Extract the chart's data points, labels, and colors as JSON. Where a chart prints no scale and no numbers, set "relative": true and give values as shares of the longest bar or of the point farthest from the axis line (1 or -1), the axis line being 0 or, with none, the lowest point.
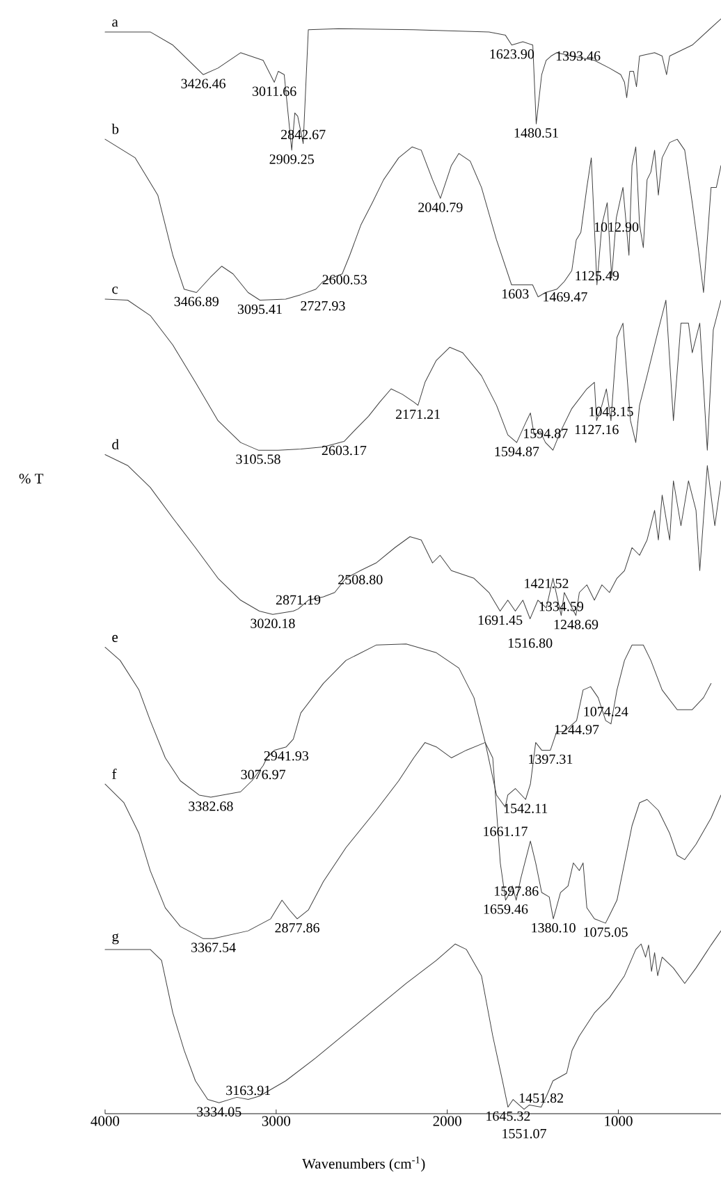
{
  "chart_data": {
    "type": "line",
    "relative": true,
    "xlabel": "Wavenumbers (cm$^{-1}$)",
    "ylabel": "% T",
    "xlim": [
      4000,
      400
    ],
    "xticks": [
      4000,
      3000,
      2000,
      1000
    ],
    "tick_labels": "x",
    "series": [
      {
        "name": "a",
        "color": "#404040",
        "x": [
          4000,
          3736,
          3604,
          3426,
          3340,
          3208,
          3076,
          3011,
          2988,
          2953,
          2909,
          2891,
          2874,
          2842,
          2812,
          2636,
          2196,
          1756,
          1660,
          1623,
          1558,
          1500,
          1480,
          1448,
          1422,
          1393,
          1360,
          1272,
          1140,
          1052,
          986,
          964,
          951,
          933,
          911,
          894,
          876,
          788,
          744,
          718,
          700,
          568,
          400
        ],
        "values": [
          0.988,
          0.988,
          0.976,
          0.949,
          0.955,
          0.969,
          0.962,
          0.942,
          0.952,
          0.949,
          0.88,
          0.914,
          0.911,
          0.886,
          0.99,
          0.991,
          0.99,
          0.988,
          0.985,
          0.976,
          0.979,
          0.976,
          0.904,
          0.949,
          0.962,
          0.966,
          0.969,
          0.966,
          0.962,
          0.955,
          0.949,
          0.942,
          0.928,
          0.952,
          0.952,
          0.938,
          0.966,
          0.969,
          0.966,
          0.949,
          0.966,
          0.976,
          1.0
        ]
      },
      {
        "name": "b",
        "color": "#404040",
        "x": [
          4000,
          3824,
          3692,
          3604,
          3538,
          3466,
          3384,
          3318,
          3252,
          3164,
          3095,
          2944,
          2856,
          2768,
          2727,
          2614,
          2570,
          2504,
          2438,
          2372,
          2284,
          2205,
          2152,
          2086,
          2040,
          1976,
          1932,
          1866,
          1800,
          1712,
          1624,
          1603,
          1501,
          1469,
          1426,
          1360,
          1316,
          1272,
          1246,
          1219,
          1184,
          1158,
          1125,
          1096,
          1065,
          1039,
          1012,
          973,
          938,
          920,
          898,
          876,
          854,
          832,
          810,
          788,
          766,
          744,
          700,
          656,
          612,
          568,
          533,
          502,
          480,
          458,
          427,
          400
        ],
        "values": [
          0.89,
          0.873,
          0.839,
          0.784,
          0.753,
          0.75,
          0.764,
          0.774,
          0.767,
          0.75,
          0.743,
          0.744,
          0.748,
          0.753,
          0.76,
          0.767,
          0.784,
          0.812,
          0.832,
          0.853,
          0.873,
          0.883,
          0.88,
          0.853,
          0.836,
          0.866,
          0.877,
          0.87,
          0.846,
          0.798,
          0.757,
          0.757,
          0.757,
          0.746,
          0.75,
          0.753,
          0.76,
          0.77,
          0.798,
          0.805,
          0.846,
          0.873,
          0.757,
          0.812,
          0.832,
          0.764,
          0.818,
          0.846,
          0.784,
          0.866,
          0.883,
          0.812,
          0.791,
          0.853,
          0.86,
          0.88,
          0.839,
          0.873,
          0.887,
          0.89,
          0.88,
          0.832,
          0.791,
          0.75,
          0.798,
          0.846,
          0.846,
          0.866
        ]
      },
      {
        "name": "c",
        "color": "#404040",
        "x": [
          4000,
          3868,
          3736,
          3604,
          3472,
          3340,
          3208,
          3105,
          2988,
          2856,
          2724,
          2603,
          2548,
          2460,
          2394,
          2328,
          2262,
          2196,
          2171,
          2130,
          2064,
          1985,
          1910,
          1800,
          1712,
          1646,
          1594,
          1536,
          1514,
          1492,
          1457,
          1426,
          1382,
          1338,
          1272,
          1184,
          1140,
          1127,
          1096,
          1070,
          1043,
          1008,
          973,
          929,
          898,
          876,
          832,
          766,
          722,
          678,
          634,
          590,
          568,
          524,
          480,
          445,
          400
        ],
        "values": [
          0.744,
          0.743,
          0.729,
          0.702,
          0.668,
          0.633,
          0.613,
          0.606,
          0.606,
          0.607,
          0.609,
          0.614,
          0.623,
          0.637,
          0.65,
          0.662,
          0.657,
          0.65,
          0.647,
          0.668,
          0.688,
          0.7,
          0.695,
          0.674,
          0.647,
          0.62,
          0.613,
          0.633,
          0.64,
          0.62,
          0.623,
          0.613,
          0.606,
          0.623,
          0.644,
          0.662,
          0.668,
          0.633,
          0.647,
          0.662,
          0.633,
          0.709,
          0.722,
          0.633,
          0.613,
          0.647,
          0.674,
          0.716,
          0.743,
          0.633,
          0.722,
          0.722,
          0.695,
          0.722,
          0.606,
          0.716,
          0.743
        ]
      },
      {
        "name": "d",
        "color": "#404040",
        "x": [
          4000,
          3868,
          3736,
          3604,
          3472,
          3340,
          3208,
          3098,
          3020,
          2900,
          2871,
          2812,
          2724,
          2658,
          2592,
          2508,
          2416,
          2306,
          2218,
          2152,
          2086,
          2042,
          1976,
          1844,
          1756,
          1691,
          1646,
          1602,
          1558,
          1516,
          1470,
          1421,
          1382,
          1334,
          1316,
          1248,
          1228,
          1184,
          1140,
          1096,
          1052,
          1008,
          964,
          920,
          876,
          832,
          788,
          766,
          744,
          700,
          678,
          634,
          590,
          546,
          524,
          480,
          436,
          400
        ],
        "values": [
          0.602,
          0.592,
          0.572,
          0.544,
          0.517,
          0.489,
          0.469,
          0.459,
          0.456,
          0.459,
          0.461,
          0.469,
          0.472,
          0.476,
          0.489,
          0.496,
          0.503,
          0.517,
          0.527,
          0.524,
          0.503,
          0.51,
          0.496,
          0.489,
          0.476,
          0.459,
          0.469,
          0.459,
          0.469,
          0.452,
          0.469,
          0.462,
          0.489,
          0.455,
          0.476,
          0.455,
          0.476,
          0.483,
          0.469,
          0.483,
          0.476,
          0.489,
          0.496,
          0.517,
          0.51,
          0.524,
          0.551,
          0.524,
          0.565,
          0.524,
          0.578,
          0.537,
          0.578,
          0.551,
          0.496,
          0.592,
          0.537,
          0.578
        ]
      },
      {
        "name": "e",
        "color": "#404040",
        "x": [
          4000,
          3912,
          3802,
          3736,
          3648,
          3560,
          3450,
          3382,
          3208,
          3142,
          3076,
          3054,
          3010,
          2941,
          2900,
          2856,
          2724,
          2592,
          2416,
          2240,
          2064,
          1932,
          1844,
          1778,
          1712,
          1661,
          1646,
          1602,
          1542,
          1514,
          1483,
          1448,
          1397,
          1360,
          1316,
          1244,
          1206,
          1162,
          1118,
          1074,
          1043,
          1008,
          964,
          920,
          854,
          810,
          744,
          656,
          568,
          502,
          458
        ],
        "values": [
          0.426,
          0.414,
          0.387,
          0.359,
          0.325,
          0.304,
          0.291,
          0.289,
          0.294,
          0.304,
          0.318,
          0.325,
          0.332,
          0.335,
          0.342,
          0.366,
          0.393,
          0.414,
          0.428,
          0.429,
          0.421,
          0.407,
          0.38,
          0.339,
          0.291,
          0.28,
          0.291,
          0.297,
          0.287,
          0.301,
          0.339,
          0.332,
          0.332,
          0.349,
          0.349,
          0.359,
          0.387,
          0.39,
          0.38,
          0.359,
          0.356,
          0.387,
          0.414,
          0.428,
          0.428,
          0.414,
          0.387,
          0.369,
          0.369,
          0.38,
          0.393
        ]
      },
      {
        "name": "f",
        "color": "#404040",
        "x": [
          4000,
          3890,
          3802,
          3736,
          3648,
          3560,
          3428,
          3367,
          3164,
          3032,
          2966,
          2922,
          2877,
          2812,
          2724,
          2592,
          2416,
          2284,
          2196,
          2130,
          2064,
          1976,
          1888,
          1778,
          1734,
          1712,
          1690,
          1659,
          1633,
          1620,
          1597,
          1570,
          1514,
          1483,
          1448,
          1404,
          1380,
          1338,
          1294,
          1263,
          1228,
          1206,
          1184,
          1140,
          1075,
          1052,
          1008,
          964,
          920,
          876,
          832,
          766,
          700,
          656,
          612,
          546,
          458,
          400
        ],
        "values": [
          0.301,
          0.284,
          0.256,
          0.222,
          0.188,
          0.171,
          0.16,
          0.16,
          0.167,
          0.178,
          0.195,
          0.186,
          0.178,
          0.186,
          0.212,
          0.243,
          0.277,
          0.304,
          0.325,
          0.339,
          0.335,
          0.325,
          0.332,
          0.339,
          0.325,
          0.277,
          0.229,
          0.195,
          0.202,
          0.208,
          0.195,
          0.215,
          0.249,
          0.229,
          0.202,
          0.198,
          0.178,
          0.202,
          0.208,
          0.229,
          0.222,
          0.229,
          0.188,
          0.178,
          0.174,
          0.181,
          0.195,
          0.229,
          0.263,
          0.284,
          0.287,
          0.277,
          0.256,
          0.236,
          0.232,
          0.246,
          0.27,
          0.291
        ]
      },
      {
        "name": "g",
        "color": "#404040",
        "x": [
          4000,
          3736,
          3670,
          3604,
          3538,
          3472,
          3400,
          3334,
          3230,
          3163,
          3098,
          2944,
          2768,
          2504,
          2240,
          2064,
          1954,
          1888,
          1800,
          1734,
          1677,
          1645,
          1615,
          1580,
          1551,
          1520,
          1451,
          1420,
          1382,
          1302,
          1270,
          1228,
          1140,
          1052,
          964,
          898,
          867,
          841,
          823,
          806,
          788,
          770,
          744,
          678,
          612,
          546,
          458,
          400
        ],
        "values": [
          0.15,
          0.15,
          0.14,
          0.092,
          0.058,
          0.03,
          0.013,
          0.01,
          0.015,
          0.013,
          0.016,
          0.03,
          0.051,
          0.085,
          0.119,
          0.14,
          0.155,
          0.15,
          0.126,
          0.071,
          0.03,
          0.006,
          0.013,
          0.008,
          0.004,
          0.008,
          0.006,
          0.016,
          0.03,
          0.037,
          0.058,
          0.071,
          0.092,
          0.106,
          0.126,
          0.15,
          0.155,
          0.143,
          0.154,
          0.13,
          0.147,
          0.126,
          0.143,
          0.133,
          0.119,
          0.133,
          0.154,
          0.167
        ]
      }
    ],
    "annotations": [
      {
        "text": "3426.46",
        "x": 3426,
        "y": 0.949
      },
      {
        "text": "3011.66",
        "x": 3011,
        "y": 0.942
      },
      {
        "text": "2909.25",
        "x": 2909,
        "y": 0.88
      },
      {
        "text": "2842.67",
        "x": 2842,
        "y": 0.886
      },
      {
        "text": "1623.90",
        "x": 1623,
        "y": 0.976
      },
      {
        "text": "1393.46",
        "x": 1393,
        "y": 0.966
      },
      {
        "text": "1480.51",
        "x": 1480,
        "y": 0.904
      },
      {
        "text": "2040.79",
        "x": 2040,
        "y": 0.836
      },
      {
        "text": "2600.53",
        "x": 2600,
        "y": 0.77
      },
      {
        "text": "3466.89",
        "x": 3466,
        "y": 0.75
      },
      {
        "text": "3095.41",
        "x": 3095,
        "y": 0.743
      },
      {
        "text": "2727.93",
        "x": 2727,
        "y": 0.76
      },
      {
        "text": "1603",
        "x": 1603,
        "y": 0.757
      },
      {
        "text": "1469.47",
        "x": 1469,
        "y": 0.746
      },
      {
        "text": "1125.49",
        "x": 1125,
        "y": 0.757
      },
      {
        "text": "1012.90",
        "x": 1012,
        "y": 0.818
      },
      {
        "text": "2171.21",
        "x": 2171,
        "y": 0.647
      },
      {
        "text": "3105.58",
        "x": 3105,
        "y": 0.606
      },
      {
        "text": "2603.17",
        "x": 2603,
        "y": 0.614
      },
      {
        "text": "1594.87",
        "x": 1594,
        "y": 0.613
      },
      {
        "text": "1594.87",
        "x": 1426,
        "y": 0.613
      },
      {
        "text": "1127.16",
        "x": 1127,
        "y": 0.633
      },
      {
        "text": "1043.15",
        "x": 1043,
        "y": 0.633
      },
      {
        "text": "2508.80",
        "x": 2508,
        "y": 0.496
      },
      {
        "text": "3020.18",
        "x": 3020,
        "y": 0.456
      },
      {
        "text": "2871.19",
        "x": 2871,
        "y": 0.461
      },
      {
        "text": "1691.45",
        "x": 1691,
        "y": 0.459
      },
      {
        "text": "1248.69",
        "x": 1248,
        "y": 0.455
      },
      {
        "text": "1516.80",
        "x": 1516,
        "y": 0.452
      },
      {
        "text": "1334.59",
        "x": 1334,
        "y": 0.455
      },
      {
        "text": "1421.52",
        "x": 1421,
        "y": 0.462
      },
      {
        "text": "2941.93",
        "x": 2941,
        "y": 0.335
      },
      {
        "text": "3076.97",
        "x": 3076,
        "y": 0.318
      },
      {
        "text": "3382.68",
        "x": 3382,
        "y": 0.289
      },
      {
        "text": "1397.31",
        "x": 1397,
        "y": 0.332
      },
      {
        "text": "1244.97",
        "x": 1244,
        "y": 0.359
      },
      {
        "text": "1074.24",
        "x": 1074,
        "y": 0.359
      },
      {
        "text": "1542.11",
        "x": 1542,
        "y": 0.287
      },
      {
        "text": "1661.17",
        "x": 1661,
        "y": 0.28
      },
      {
        "text": "3367.54",
        "x": 3367,
        "y": 0.16
      },
      {
        "text": "2877.86",
        "x": 2877,
        "y": 0.178
      },
      {
        "text": "1659.46",
        "x": 1659,
        "y": 0.195
      },
      {
        "text": "1597.86",
        "x": 1597,
        "y": 0.195
      },
      {
        "text": "1380.10",
        "x": 1380,
        "y": 0.178
      },
      {
        "text": "1075.05",
        "x": 1075,
        "y": 0.174
      },
      {
        "text": "3163.91",
        "x": 3163,
        "y": 0.013
      },
      {
        "text": "3334.05",
        "x": 3334,
        "y": 0.01
      },
      {
        "text": "1645.32",
        "x": 1645,
        "y": 0.006
      },
      {
        "text": "1451.82",
        "x": 1451,
        "y": 0.006
      },
      {
        "text": "1551.07",
        "x": 1551,
        "y": 0.004
      }
    ]
  }
}
